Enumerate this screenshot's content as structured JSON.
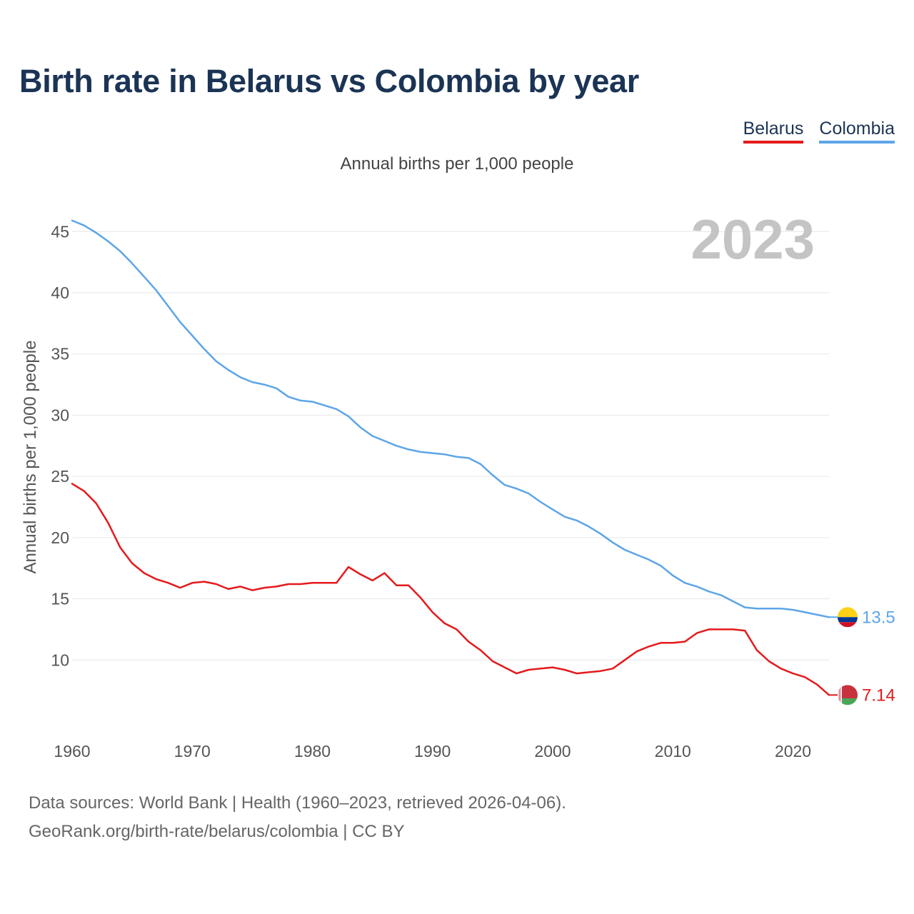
{
  "title": "Birth rate in Belarus vs Colombia by year",
  "subtitle": "Annual births per 1,000 people",
  "legend": [
    "Belarus",
    "Colombia"
  ],
  "colors": {
    "Belarus": "#e41a1c",
    "Colombia": "#5da5e8"
  },
  "footer": {
    "line1": "Data sources: World Bank | Health (1960–2023, retrieved 2026-04-06).",
    "line2": "GeoRank.org/birth-rate/belarus/colombia | CC BY"
  },
  "chart_data": {
    "type": "line",
    "title": "Birth rate in Belarus vs Colombia by year",
    "ylabel": "Annual births per 1,000 people",
    "xlabel": "",
    "year_label": "2023",
    "xlim": [
      1960,
      2023
    ],
    "ylim": [
      5,
      47
    ],
    "x_ticks": [
      1960,
      1970,
      1980,
      1990,
      2000,
      2010,
      2020
    ],
    "y_ticks": [
      10,
      15,
      20,
      25,
      30,
      35,
      40,
      45
    ],
    "grid": true,
    "x": [
      1960,
      1961,
      1962,
      1963,
      1964,
      1965,
      1966,
      1967,
      1968,
      1969,
      1970,
      1971,
      1972,
      1973,
      1974,
      1975,
      1976,
      1977,
      1978,
      1979,
      1980,
      1981,
      1982,
      1983,
      1984,
      1985,
      1986,
      1987,
      1988,
      1989,
      1990,
      1991,
      1992,
      1993,
      1994,
      1995,
      1996,
      1997,
      1998,
      1999,
      2000,
      2001,
      2002,
      2003,
      2004,
      2005,
      2006,
      2007,
      2008,
      2009,
      2010,
      2011,
      2012,
      2013,
      2014,
      2015,
      2016,
      2017,
      2018,
      2019,
      2020,
      2021,
      2022,
      2023
    ],
    "series": [
      {
        "name": "Colombia",
        "end_label": "13.5",
        "values": [
          45.9,
          45.5,
          44.9,
          44.2,
          43.4,
          42.4,
          41.3,
          40.2,
          38.9,
          37.6,
          36.5,
          35.4,
          34.4,
          33.7,
          33.1,
          32.7,
          32.5,
          32.2,
          31.5,
          31.2,
          31.1,
          30.8,
          30.5,
          29.9,
          29.0,
          28.3,
          27.9,
          27.5,
          27.2,
          27.0,
          26.9,
          26.8,
          26.6,
          26.5,
          26.0,
          25.1,
          24.3,
          24.0,
          23.6,
          22.9,
          22.3,
          21.7,
          21.4,
          20.9,
          20.3,
          19.6,
          19.0,
          18.6,
          18.2,
          17.7,
          16.9,
          16.3,
          16.0,
          15.6,
          15.3,
          14.8,
          14.3,
          14.2,
          14.2,
          14.2,
          14.1,
          13.9,
          13.7,
          13.5
        ]
      },
      {
        "name": "Belarus",
        "end_label": "7.14",
        "values": [
          24.4,
          23.8,
          22.8,
          21.2,
          19.2,
          17.9,
          17.1,
          16.6,
          16.3,
          15.9,
          16.3,
          16.4,
          16.2,
          15.8,
          16.0,
          15.7,
          15.9,
          16.0,
          16.2,
          16.2,
          16.3,
          16.3,
          16.3,
          17.6,
          17.0,
          16.5,
          17.1,
          16.1,
          16.1,
          15.1,
          13.9,
          13.0,
          12.5,
          11.5,
          10.8,
          9.9,
          9.4,
          8.9,
          9.2,
          9.3,
          9.4,
          9.2,
          8.9,
          9.0,
          9.1,
          9.3,
          10.0,
          10.7,
          11.1,
          11.4,
          11.4,
          11.5,
          12.2,
          12.5,
          12.5,
          12.5,
          12.4,
          10.8,
          9.9,
          9.3,
          8.9,
          8.6,
          8.0,
          7.14
        ]
      }
    ]
  }
}
